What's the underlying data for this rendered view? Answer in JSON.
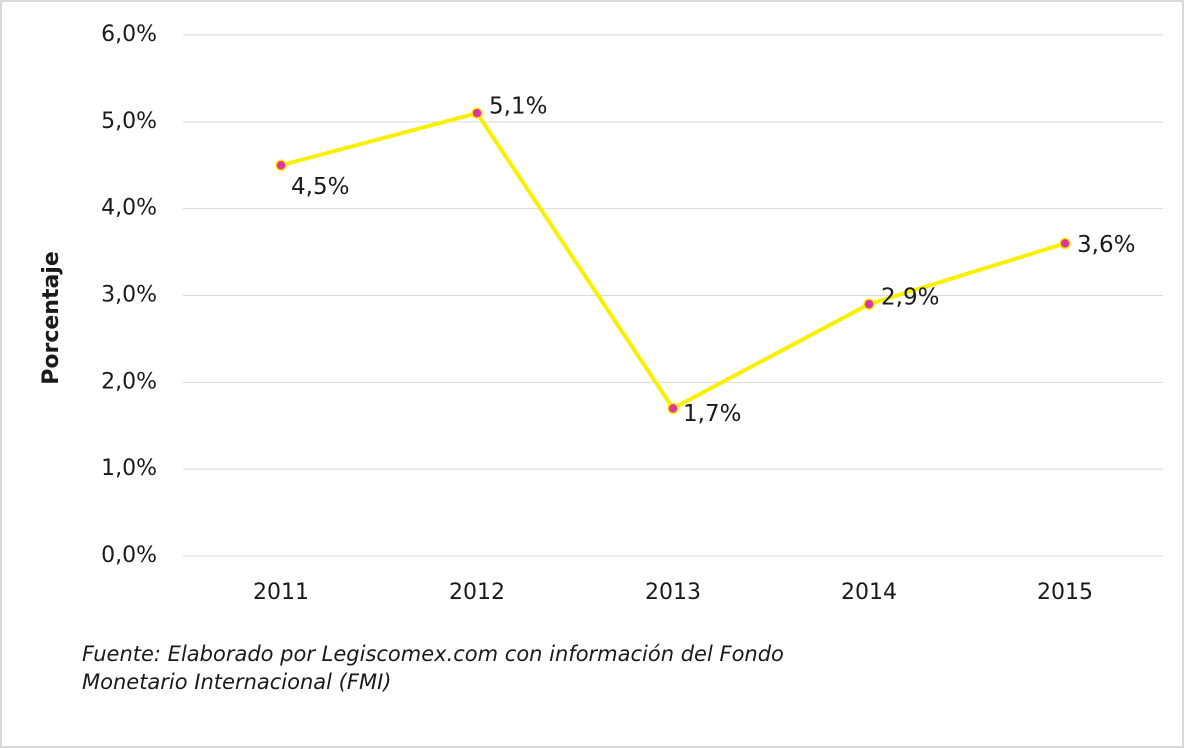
{
  "chart_data": {
    "type": "line",
    "y_label": "Porcentaje",
    "categories": [
      "2011",
      "2012",
      "2013",
      "2014",
      "2015"
    ],
    "series": [
      {
        "color": "#f8f000",
        "marker_color": "#e0359c",
        "values": [
          4.5,
          5.1,
          1.7,
          2.9,
          3.6
        ],
        "value_labels": [
          "4,5%",
          "5,1%",
          "1,7%",
          "2,9%",
          "3,6%"
        ]
      }
    ],
    "ylim": [
      0,
      6
    ],
    "yticks": [
      {
        "value": 0,
        "label": "0,0%"
      },
      {
        "value": 1,
        "label": "1,0%"
      },
      {
        "value": 2,
        "label": "2,0%"
      },
      {
        "value": 3,
        "label": "3,0%"
      },
      {
        "value": 4,
        "label": "4,0%"
      },
      {
        "value": 5,
        "label": "5,0%"
      },
      {
        "value": 6,
        "label": "6,0%"
      }
    ],
    "grid": true,
    "source": "Fuente: Elaborado por Legiscomex.com con información del Fondo Monetario Internacional (FMI)"
  }
}
